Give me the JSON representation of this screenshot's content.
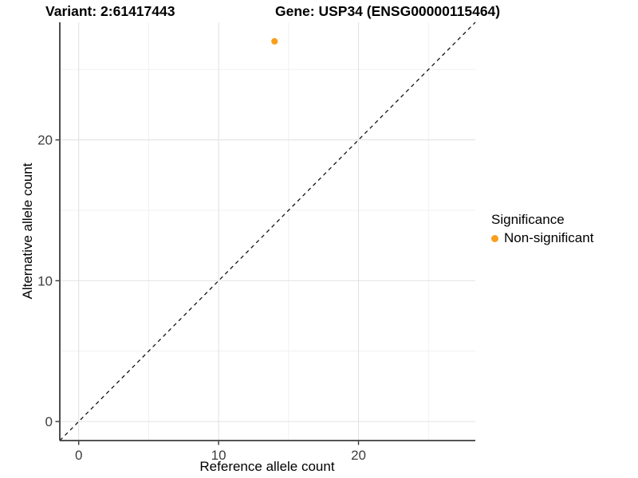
{
  "header": {
    "variant_title": "Variant: 2:61417443",
    "gene_title": "Gene: USP34 (ENSG00000115464)"
  },
  "axes": {
    "x_label": "Reference allele count",
    "y_label": "Alternative allele count"
  },
  "legend": {
    "title": "Significance",
    "items": [
      {
        "label": "Non-significant",
        "color": "#FA9E1B"
      }
    ]
  },
  "chart_data": {
    "type": "scatter",
    "title_left": "Variant: 2:61417443",
    "title_right": "Gene: USP34 (ENSG00000115464)",
    "xlabel": "Reference allele count",
    "ylabel": "Alternative allele count",
    "xlim": [
      -1.35,
      28.35
    ],
    "ylim": [
      -1.35,
      28.35
    ],
    "x_ticks": [
      0,
      10,
      20
    ],
    "y_ticks": [
      0,
      10,
      20
    ],
    "x_minor_ticks": [
      5,
      15,
      25
    ],
    "y_minor_ticks": [
      5,
      15,
      25
    ],
    "grid": true,
    "legend_position": "right",
    "series": [
      {
        "name": "Non-significant",
        "color": "#FA9E1B",
        "points": [
          {
            "x": 14,
            "y": 27
          }
        ]
      }
    ],
    "identity_line": {
      "style": "dashed",
      "slope": 1,
      "intercept": 0
    }
  },
  "colors": {
    "background": "#ffffff",
    "point_orange": "#FA9E1B",
    "grid_major": "#e3e3e3",
    "grid_minor": "#efefef",
    "axis_line": "#3b3b3b"
  }
}
